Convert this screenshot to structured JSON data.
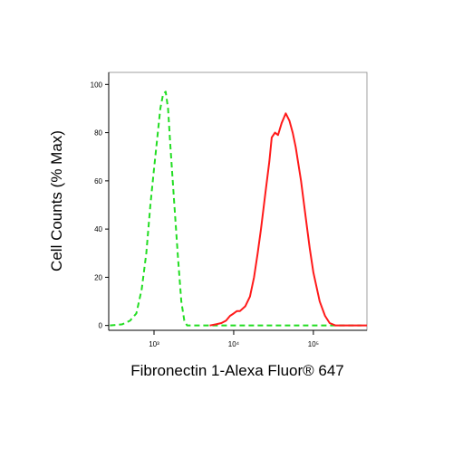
{
  "chart_data": {
    "type": "line",
    "x_label": "Fibronectin 1-Alexa Fluor® 647",
    "y_label": "Cell Counts (% Max)",
    "xscale": "log",
    "xlim": [
      270,
      470000
    ],
    "ylim": [
      -2,
      105
    ],
    "xticks": [
      {
        "value": 1000,
        "label": "10³"
      },
      {
        "value": 10000,
        "label": "10⁴"
      },
      {
        "value": 100000,
        "label": "10⁵"
      }
    ],
    "yticks": [
      0,
      20,
      40,
      60,
      80,
      100
    ],
    "series": [
      {
        "color": "#22dd22",
        "dash": true,
        "x": [
          280,
          400,
          500,
          600,
          700,
          800,
          900,
          1000,
          1100,
          1200,
          1300,
          1400,
          1500,
          1600,
          1800,
          2000,
          2200,
          2400,
          2600,
          5000,
          20000,
          100000,
          400000
        ],
        "values": [
          0,
          0.5,
          2,
          5,
          15,
          30,
          50,
          65,
          78,
          90,
          96,
          97,
          90,
          75,
          50,
          28,
          10,
          2,
          0,
          0,
          0,
          0,
          0
        ]
      },
      {
        "color": "#ff1a1a",
        "dash": false,
        "x": [
          5000,
          6000,
          7000,
          8000,
          9000,
          10000,
          11000,
          12000,
          14000,
          16000,
          18000,
          20000,
          22000,
          25000,
          28000,
          30000,
          33000,
          36000,
          40000,
          45000,
          50000,
          55000,
          60000,
          70000,
          80000,
          90000,
          100000,
          120000,
          140000,
          160000,
          190000,
          300000,
          470000
        ],
        "values": [
          0,
          0.5,
          1,
          2,
          4,
          5,
          6,
          6,
          8,
          12,
          20,
          30,
          40,
          55,
          68,
          78,
          80,
          79,
          84,
          88,
          85,
          80,
          74,
          60,
          45,
          32,
          22,
          10,
          4,
          1,
          0,
          0,
          0
        ]
      }
    ]
  }
}
